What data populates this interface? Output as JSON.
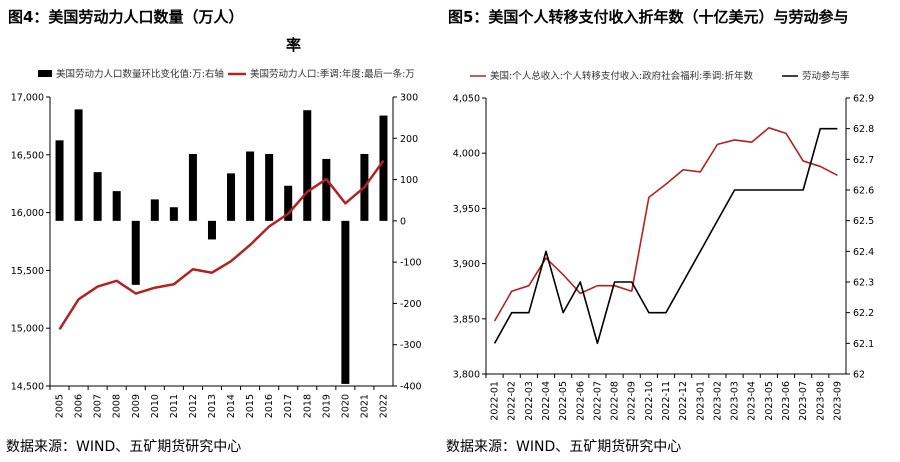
{
  "left": {
    "title": "图4：美国劳动力人口数量（万人）",
    "source": "数据来源：WIND、五矿期货研究中心",
    "chart_data": {
      "type": "bar",
      "categories": [
        "2005",
        "2006",
        "2007",
        "2008",
        "2009",
        "2010",
        "2011",
        "2012",
        "2013",
        "2014",
        "2015",
        "2016",
        "2017",
        "2018",
        "2019",
        "2020",
        "2021",
        "2022"
      ],
      "series": [
        {
          "name": "美国劳动力人口数量环比变化值:万:右轴",
          "type": "bar",
          "axis": "right",
          "color": "#000000",
          "values": [
            195,
            270,
            118,
            72,
            -155,
            52,
            33,
            162,
            -45,
            115,
            168,
            162,
            85,
            268,
            150,
            -395,
            162,
            255
          ]
        },
        {
          "name": "美国劳动力人口:季调:年度:最后一条:万",
          "type": "line",
          "axis": "left",
          "color": "#b22222",
          "values": [
            14990,
            15250,
            15360,
            15410,
            15300,
            15350,
            15380,
            15510,
            15480,
            15580,
            15720,
            15880,
            15990,
            16180,
            16290,
            16080,
            16220,
            16450
          ]
        }
      ],
      "ylim_left": [
        14500,
        17000
      ],
      "yticks_left": [
        "17,000",
        "16,500",
        "16,000",
        "15,500",
        "15,000",
        "14,500"
      ],
      "ylim_right": [
        -400,
        300
      ],
      "yticks_right": [
        "300",
        "200",
        "100",
        "0",
        "-100",
        "-200",
        "-300",
        "-400"
      ],
      "grid": false,
      "legend": "top"
    }
  },
  "right": {
    "title": "图5：美国个人转移支付收入折年数（十亿美元）与劳动参与率",
    "source": "数据来源：WIND、五矿期货研究中心",
    "chart_data": {
      "type": "line",
      "categories": [
        "2022-01",
        "2022-02",
        "2022-03",
        "2022-04",
        "2022-05",
        "2022-06",
        "2022-07",
        "2022-08",
        "2022-09",
        "2022-10",
        "2022-11",
        "2022-12",
        "2023-01",
        "2023-02",
        "2023-03",
        "2023-04",
        "2023-05",
        "2023-06",
        "2023-07",
        "2023-08",
        "2023-09"
      ],
      "series": [
        {
          "name": "美国:个人总收入:个人转移支付收入:政府社会福利:季调:折年数",
          "axis": "left",
          "color": "#b22222",
          "values": [
            3848,
            3875,
            3880,
            3905,
            3890,
            3873,
            3880,
            3880,
            3875,
            3960,
            3972,
            3985,
            3983,
            4008,
            4012,
            4010,
            4023,
            4018,
            3993,
            3988,
            3980
          ]
        },
        {
          "name": "劳动参与率",
          "axis": "right",
          "color": "#000000",
          "values": [
            62.1,
            62.2,
            62.2,
            62.4,
            62.2,
            62.3,
            62.1,
            62.3,
            62.3,
            62.2,
            62.2,
            62.3,
            62.4,
            62.5,
            62.6,
            62.6,
            62.6,
            62.6,
            62.6,
            62.8,
            62.8
          ]
        }
      ],
      "ylim_left": [
        3800,
        4050
      ],
      "yticks_left": [
        "4,050",
        "4,000",
        "3,950",
        "3,900",
        "3,850",
        "3,800"
      ],
      "ylim_right": [
        62,
        62.9
      ],
      "yticks_right": [
        "62.9",
        "62.8",
        "62.7",
        "62.6",
        "62.5",
        "62.4",
        "62.3",
        "62.2",
        "62.1",
        "62"
      ],
      "grid": false,
      "legend": "top"
    }
  }
}
